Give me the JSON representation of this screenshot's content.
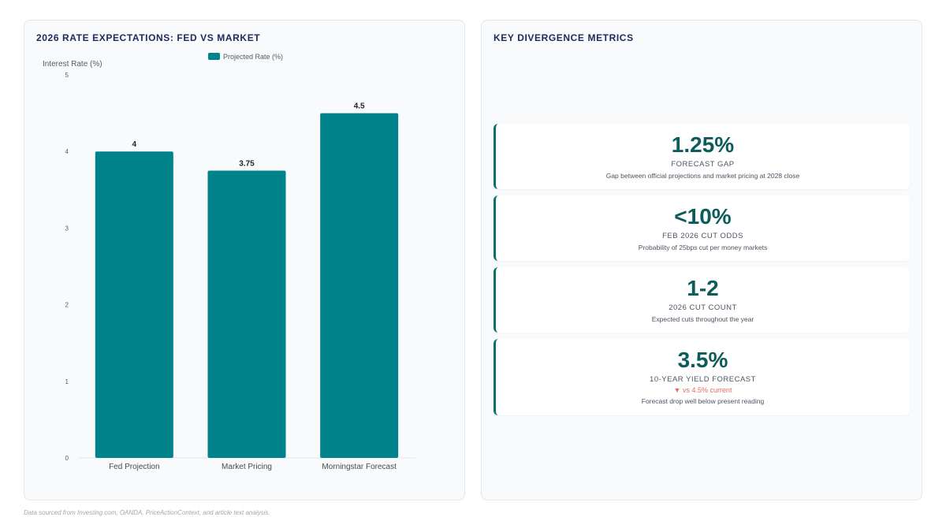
{
  "chart_panel": {
    "title": "2026 RATE EXPECTATIONS: FED VS MARKET"
  },
  "chart_data": {
    "type": "bar",
    "categories": [
      "Fed Projection",
      "Market Pricing",
      "Morningstar Forecast"
    ],
    "series": [
      {
        "name": "Projected Rate (%)",
        "values": [
          4,
          3.75,
          4.5
        ],
        "color": "#00838a"
      }
    ],
    "data_labels": [
      "4",
      "3.75",
      "4.5"
    ],
    "ylabel": "Interest Rate (%)",
    "xlabel": "",
    "ylim": [
      0,
      5
    ],
    "yticks": [
      "0",
      "1",
      "2",
      "3",
      "4",
      "5"
    ],
    "legend_position": "top-center",
    "grid": false
  },
  "metrics_panel": {
    "title": "KEY DIVERGENCE METRICS",
    "cards": [
      {
        "value": "1.25%",
        "label": "FORECAST GAP",
        "change": "",
        "description": "Gap between official projections and market pricing at 2028 close"
      },
      {
        "value": "<10%",
        "label": "FEB 2026 CUT ODDS",
        "change": "",
        "description": "Probability of 25bps cut per money markets"
      },
      {
        "value": "1-2",
        "label": "2026 CUT COUNT",
        "change": "",
        "description": "Expected cuts throughout the year"
      },
      {
        "value": "3.5%",
        "label": "10-YEAR YIELD FORECAST",
        "change": "▼ vs 4.5% current",
        "description": "Forecast drop well below present reading"
      }
    ]
  },
  "footer": {
    "note": "Data sourced from Investing.com, OANDA, PriceActionContext, and article text analysis."
  },
  "colors": {
    "accent": "#0d5c5c",
    "bar": "#00838a",
    "title": "#1e2a5a",
    "negative_change": "#e0705a"
  }
}
